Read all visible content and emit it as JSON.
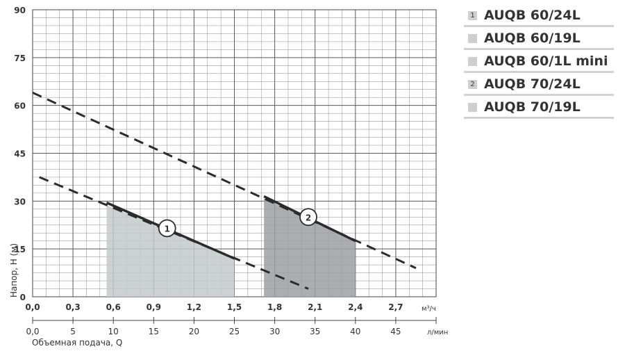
{
  "chart_data": {
    "type": "line",
    "ylabel": "Напор, H (м)",
    "xlabel": "Объемная подача, Q",
    "x_unit_primary": "м³/ч",
    "x_unit_secondary": "л/мин",
    "x_ticks_primary": [
      "0,0",
      "0,3",
      "0,6",
      "0,9",
      "1,2",
      "1,5",
      "1,8",
      "2,1",
      "2,4",
      "2,7"
    ],
    "x_ticks_secondary": [
      "0,0",
      "5",
      "10",
      "15",
      "20",
      "25",
      "30",
      "35",
      "40",
      "45"
    ],
    "y_ticks": [
      "0",
      "15",
      "30",
      "45",
      "60",
      "75",
      "90"
    ],
    "xlim": [
      0,
      3.0
    ],
    "ylim": [
      0,
      90
    ],
    "grid": true,
    "series": [
      {
        "name": "1",
        "dashed": [
          [
            0.05,
            37.5
          ],
          [
            2.05,
            2.5
          ]
        ],
        "solid": [
          [
            0.55,
            29.5
          ],
          [
            1.5,
            12
          ]
        ],
        "shade": [
          0.55,
          1.5
        ],
        "marker": [
          1.0,
          21.5
        ],
        "fill": "#c3c9cd"
      },
      {
        "name": "2",
        "dashed": [
          [
            0.0,
            64
          ],
          [
            2.85,
            9
          ]
        ],
        "solid": [
          [
            1.72,
            31.5
          ],
          [
            2.4,
            17.5
          ]
        ],
        "shade": [
          1.72,
          2.4
        ],
        "marker": [
          2.05,
          25
        ],
        "fill": "#9c9fa3"
      }
    ]
  },
  "legend": {
    "items": [
      {
        "marker": "1",
        "label": "AUQB 60/24L"
      },
      {
        "marker": "",
        "label": "AUQB 60/19L"
      },
      {
        "marker": "",
        "label": "AUQB 60/1L mini"
      },
      {
        "marker": "2",
        "label": "AUQB 70/24L"
      },
      {
        "marker": "",
        "label": "AUQB 70/19L"
      }
    ]
  },
  "colors": {
    "grid": "#8a8a8a",
    "line": "#2b2b2b"
  }
}
